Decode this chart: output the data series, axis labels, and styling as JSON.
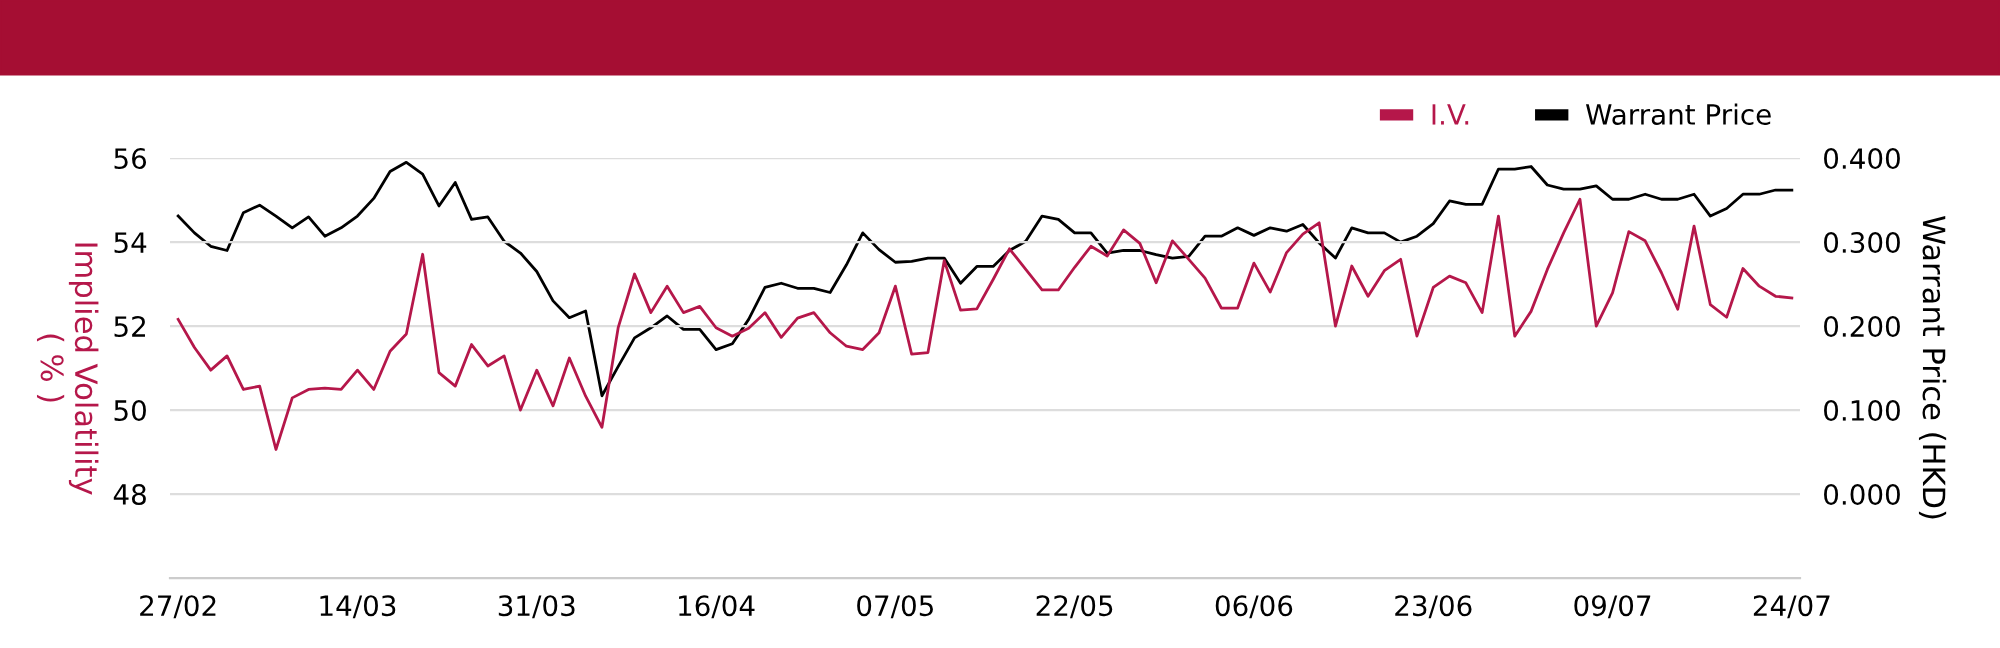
{
  "chart_data": {
    "type": "line",
    "ylabel": "Implied Volatility\n( % )",
    "y2label": "Warrant Price (HKD)",
    "categories": [
      "27/02",
      null,
      null,
      null,
      null,
      null,
      null,
      null,
      null,
      null,
      null,
      "14/03",
      null,
      null,
      null,
      null,
      null,
      null,
      null,
      null,
      null,
      null,
      "31/03",
      null,
      null,
      null,
      null,
      null,
      null,
      null,
      null,
      null,
      null,
      "16/04",
      null,
      null,
      null,
      null,
      null,
      null,
      null,
      null,
      null,
      null,
      "07/05",
      null,
      null,
      null,
      null,
      null,
      null,
      null,
      null,
      null,
      null,
      "22/05",
      null,
      null,
      null,
      null,
      null,
      null,
      null,
      null,
      null,
      null,
      "06/06",
      null,
      null,
      null,
      null,
      null,
      null,
      null,
      null,
      null,
      null,
      "23/06",
      null,
      null,
      null,
      null,
      null,
      null,
      null,
      null,
      null,
      null,
      "09/07",
      null,
      null,
      null,
      null,
      null,
      null,
      null,
      null,
      null,
      null,
      "24/07"
    ],
    "series": [
      {
        "name": "I.V.",
        "color": "#b5174a",
        "values": [
          52.16,
          51.49,
          50.95,
          51.29,
          50.49,
          50.57,
          49.06,
          50.29,
          50.49,
          50.52,
          50.49,
          50.95,
          50.49,
          51.4,
          51.81,
          53.71,
          50.89,
          50.57,
          51.56,
          51.05,
          51.29,
          50.0,
          50.95,
          50.1,
          51.24,
          50.33,
          49.59,
          51.97,
          53.24,
          52.32,
          52.95,
          52.32,
          52.47,
          51.96,
          51.76,
          51.95,
          52.32,
          51.73,
          52.19,
          52.32,
          51.84,
          51.52,
          51.44,
          51.84,
          52.95,
          51.33,
          51.37,
          53.56,
          52.38,
          52.41,
          53.11,
          53.84,
          53.35,
          52.86,
          52.86,
          53.4,
          53.9,
          53.67,
          54.29,
          53.97,
          53.03,
          54.03,
          53.59,
          53.14,
          52.43,
          52.43,
          53.5,
          52.81,
          53.75,
          54.19,
          54.46,
          52.0,
          53.43,
          52.71,
          53.32,
          53.59,
          51.76,
          52.92,
          53.19,
          53.03,
          52.32,
          54.62,
          51.76,
          52.35,
          53.35,
          54.22,
          55.02,
          52.0,
          52.79,
          54.25,
          54.03,
          53.27,
          52.4,
          54.38,
          52.51,
          52.21,
          53.37,
          52.95,
          52.71,
          52.67
        ]
      },
      {
        "name": "Warrant Price",
        "color": "#000000",
        "axis": "y2",
        "values": [
          0.331,
          0.311,
          0.295,
          0.29,
          0.335,
          0.344,
          0.331,
          0.317,
          0.33,
          0.307,
          0.317,
          0.331,
          0.352,
          0.384,
          0.395,
          0.381,
          0.343,
          0.371,
          0.327,
          0.33,
          0.301,
          0.287,
          0.265,
          0.23,
          0.21,
          0.218,
          0.117,
          0.152,
          0.186,
          0.198,
          0.212,
          0.196,
          0.196,
          0.172,
          0.179,
          0.208,
          0.246,
          0.251,
          0.245,
          0.245,
          0.24,
          0.273,
          0.311,
          0.291,
          0.276,
          0.277,
          0.281,
          0.281,
          0.251,
          0.271,
          0.271,
          0.29,
          0.301,
          0.331,
          0.327,
          0.311,
          0.311,
          0.287,
          0.29,
          0.29,
          0.285,
          0.281,
          0.283,
          0.307,
          0.307,
          0.317,
          0.308,
          0.317,
          0.313,
          0.321,
          0.299,
          0.281,
          0.317,
          0.311,
          0.311,
          0.3,
          0.307,
          0.322,
          0.349,
          0.345,
          0.345,
          0.387,
          0.387,
          0.39,
          0.368,
          0.363,
          0.363,
          0.367,
          0.351,
          0.351,
          0.357,
          0.351,
          0.351,
          0.357,
          0.331,
          0.34,
          0.357,
          0.357,
          0.362,
          0.362
        ]
      }
    ],
    "ylim": [
      46,
      56
    ],
    "yticks": [
      48,
      50,
      52,
      54,
      56
    ],
    "y2lim": [
      -0.1,
      0.4
    ],
    "y2ticks": [
      {
        "value": 0,
        "label": "0.000"
      },
      {
        "value": 0.1,
        "label": "0.100"
      },
      {
        "value": 0.2,
        "label": "0.200"
      },
      {
        "value": 0.3,
        "label": "0.300"
      },
      {
        "value": 0.4,
        "label": "0.400"
      }
    ],
    "grid": "y",
    "legend": "top right",
    "marker": "none",
    "line_style": "solid"
  }
}
